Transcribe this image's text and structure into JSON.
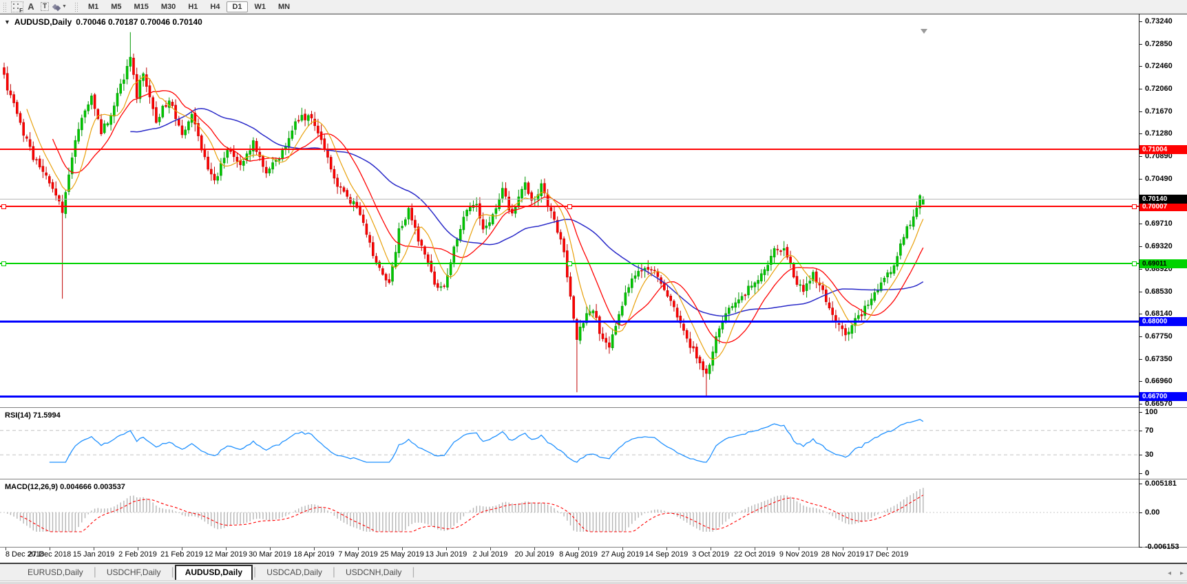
{
  "toolbar": {
    "tools": [
      {
        "id": "fibonacci",
        "glyph": "F"
      },
      {
        "id": "text",
        "glyph": "A"
      },
      {
        "id": "label",
        "glyph": "T"
      },
      {
        "id": "shapes",
        "glyph": ""
      }
    ],
    "timeframes": [
      "M1",
      "M5",
      "M15",
      "M30",
      "H1",
      "H4",
      "D1",
      "W1",
      "MN"
    ],
    "active_timeframe": "D1"
  },
  "chart": {
    "title_symbol": "AUDUSD,Daily",
    "title_ohlc": "0.70046 0.70187 0.70046 0.70140",
    "price_axis_ticks": [
      "0.73240",
      "0.72850",
      "0.72460",
      "0.72060",
      "0.71670",
      "0.71280",
      "0.70890",
      "0.70490",
      "0.69710",
      "0.69320",
      "0.68920",
      "0.68530",
      "0.68140",
      "0.67750",
      "0.67350",
      "0.66960",
      "0.66570"
    ],
    "current_price_badge": {
      "text": "0.70140",
      "bg": "#000000",
      "fg": "#ffffff"
    },
    "hlines": [
      {
        "label": "0.71004",
        "value": 0.71004,
        "color": "#ff0000",
        "width": 2,
        "selected": false,
        "badge_fg": "#ffffff"
      },
      {
        "label": "0.70007",
        "value": 0.70007,
        "color": "#ff0000",
        "width": 2,
        "selected": true,
        "badge_fg": "#ffffff"
      },
      {
        "label": "0.69011",
        "value": 0.69011,
        "color": "#00d300",
        "width": 2,
        "selected": true,
        "badge_fg": "#000000"
      },
      {
        "label": "0.68000",
        "value": 0.68,
        "color": "#0000ff",
        "width": 3,
        "selected": false,
        "badge_fg": "#ffffff"
      },
      {
        "label": "0.66700",
        "value": 0.667,
        "color": "#0000ff",
        "width": 3,
        "selected": false,
        "badge_fg": "#ffffff"
      }
    ]
  },
  "rsi_pane": {
    "label": "RSI(14) 71.5994",
    "value": 71.5994,
    "axis_ticks": [
      100,
      70,
      30,
      0
    ],
    "dashed_levels": [
      70,
      30
    ],
    "line_color": "#1e90ff"
  },
  "macd_pane": {
    "label": "MACD(12,26,9) 0.004666 0.003537",
    "macd_value": 0.004666,
    "signal_value": 0.003537,
    "axis_ticks": [
      {
        "label": "0.005181",
        "value": 0.005181
      },
      {
        "label": "0.00",
        "value": 0.0
      },
      {
        "label": "-0.006153",
        "value": -0.006153
      }
    ]
  },
  "dates": [
    "8 Dec 2018",
    "27 Dec 2018",
    "15 Jan 2019",
    "2 Feb 2019",
    "21 Feb 2019",
    "12 Mar 2019",
    "30 Mar 2019",
    "18 Apr 2019",
    "7 May 2019",
    "25 May 2019",
    "13 Jun 2019",
    "2 Jul 2019",
    "20 Jul 2019",
    "8 Aug 2019",
    "27 Aug 2019",
    "14 Sep 2019",
    "3 Oct 2019",
    "22 Oct 2019",
    "9 Nov 2019",
    "28 Nov 2019",
    "17 Dec 2019"
  ],
  "tabs": [
    {
      "label": "EURUSD,Daily",
      "active": false
    },
    {
      "label": "USDCHF,Daily",
      "active": false
    },
    {
      "label": "AUDUSD,Daily",
      "active": true
    },
    {
      "label": "USDCAD,Daily",
      "active": false
    },
    {
      "label": "USDCNH,Daily",
      "active": false
    }
  ],
  "scroll_arrows": {
    "left": "◂",
    "right": "▸"
  },
  "colors": {
    "up_candle": "#00c800",
    "up_candle_border": "#009600",
    "down_candle": "#ff0000",
    "down_candle_border": "#c00000",
    "ma_fast": "#e8a00a",
    "ma_mid": "#ff0000",
    "ma_slow": "#2828c8",
    "rsi_line": "#1e90ff",
    "rsi_dash": "#c0c0c0",
    "macd_histogram": "#b4b4b4",
    "macd_signal": "#ff0000",
    "current_price_line": "#b8b8b8"
  },
  "chart_data": {
    "type": "candlestick",
    "symbol": "AUDUSD",
    "timeframe": "Daily",
    "last_ohlc": {
      "open": 0.70046,
      "high": 0.70187,
      "low": 0.70046,
      "close": 0.7014
    },
    "price_axis_range": [
      0.6657,
      0.7324
    ],
    "candle_count": 285,
    "close_waypoints": [
      [
        0,
        0.7225
      ],
      [
        4,
        0.716
      ],
      [
        9,
        0.7085
      ],
      [
        14,
        0.704
      ],
      [
        18,
        0.6995
      ],
      [
        21,
        0.7085
      ],
      [
        23,
        0.714
      ],
      [
        27,
        0.719
      ],
      [
        30,
        0.713
      ],
      [
        33,
        0.716
      ],
      [
        36,
        0.721
      ],
      [
        39,
        0.7262
      ],
      [
        41,
        0.7195
      ],
      [
        43,
        0.7235
      ],
      [
        47,
        0.715
      ],
      [
        51,
        0.719
      ],
      [
        55,
        0.7125
      ],
      [
        58,
        0.7165
      ],
      [
        62,
        0.7085
      ],
      [
        65,
        0.7045
      ],
      [
        69,
        0.71
      ],
      [
        73,
        0.7075
      ],
      [
        77,
        0.711
      ],
      [
        81,
        0.7065
      ],
      [
        86,
        0.7095
      ],
      [
        91,
        0.7155
      ],
      [
        95,
        0.716
      ],
      [
        99,
        0.7105
      ],
      [
        103,
        0.704
      ],
      [
        106,
        0.702
      ],
      [
        110,
        0.699
      ],
      [
        113,
        0.6935
      ],
      [
        117,
        0.688
      ],
      [
        119,
        0.6862
      ],
      [
        122,
        0.696
      ],
      [
        125,
        0.6995
      ],
      [
        127,
        0.696
      ],
      [
        130,
        0.692
      ],
      [
        133,
        0.687
      ],
      [
        136,
        0.6856
      ],
      [
        139,
        0.6935
      ],
      [
        143,
        0.699
      ],
      [
        146,
        0.7005
      ],
      [
        148,
        0.696
      ],
      [
        151,
        0.6988
      ],
      [
        154,
        0.703
      ],
      [
        157,
        0.6985
      ],
      [
        161,
        0.7042
      ],
      [
        163,
        0.701
      ],
      [
        166,
        0.7035
      ],
      [
        169,
        0.699
      ],
      [
        173,
        0.692
      ],
      [
        175,
        0.684
      ],
      [
        177,
        0.6775
      ],
      [
        179,
        0.68
      ],
      [
        182,
        0.6825
      ],
      [
        184,
        0.678
      ],
      [
        187,
        0.676
      ],
      [
        190,
        0.681
      ],
      [
        192,
        0.685
      ],
      [
        195,
        0.688
      ],
      [
        198,
        0.689
      ],
      [
        201,
        0.6885
      ],
      [
        204,
        0.686
      ],
      [
        207,
        0.682
      ],
      [
        210,
        0.678
      ],
      [
        214,
        0.674
      ],
      [
        217,
        0.671
      ],
      [
        221,
        0.679
      ],
      [
        224,
        0.683
      ],
      [
        228,
        0.684
      ],
      [
        231,
        0.6865
      ],
      [
        235,
        0.689
      ],
      [
        238,
        0.6925
      ],
      [
        241,
        0.693
      ],
      [
        244,
        0.688
      ],
      [
        247,
        0.685
      ],
      [
        250,
        0.688
      ],
      [
        253,
        0.6855
      ],
      [
        255,
        0.682
      ],
      [
        258,
        0.679
      ],
      [
        260,
        0.6775
      ],
      [
        263,
        0.68
      ],
      [
        267,
        0.683
      ],
      [
        270,
        0.6855
      ],
      [
        273,
        0.688
      ],
      [
        276,
        0.6915
      ],
      [
        278,
        0.695
      ],
      [
        281,
        0.6985
      ],
      [
        283,
        0.702
      ],
      [
        284,
        0.7014
      ]
    ],
    "wick_extremes": {
      "highs": [
        [
          39,
          0.7305
        ],
        [
          161,
          0.7052
        ]
      ],
      "lows": [
        [
          18,
          0.684
        ],
        [
          177,
          0.6677
        ],
        [
          217,
          0.667
        ]
      ]
    },
    "moving_averages": [
      {
        "period": 8,
        "color": "#e8a00a"
      },
      {
        "period": 16,
        "color": "#ff0000"
      },
      {
        "period": 40,
        "color": "#2828c8"
      }
    ],
    "horizontal_lines": [
      0.71004,
      0.70007,
      0.69011,
      0.68,
      0.667
    ],
    "current_price": 0.7014,
    "indicators": [
      {
        "name": "RSI",
        "period": 14,
        "current": 71.5994,
        "range": [
          0,
          100
        ],
        "levels": [
          70,
          30
        ]
      },
      {
        "name": "MACD",
        "params": [
          12,
          26,
          9
        ],
        "macd": 0.004666,
        "signal": 0.003537,
        "axis_range": [
          -0.006153,
          0.005181
        ]
      }
    ]
  }
}
